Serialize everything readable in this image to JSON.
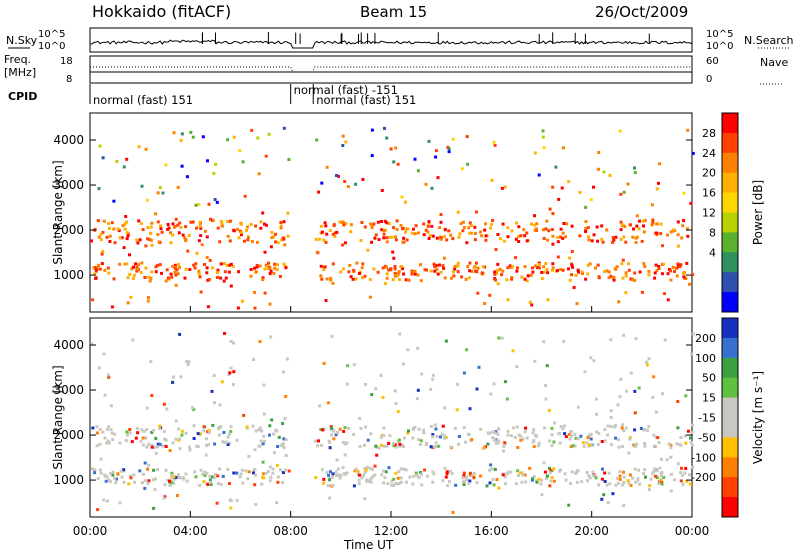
{
  "header": {
    "title": "Hokkaido (fitACF)",
    "beam": "Beam 15",
    "date": "26/Oct/2009"
  },
  "params": {
    "nsky_label": "N.Sky",
    "nsearch_label": "N.Search",
    "freq_label_1": "Freq.",
    "freq_label_2": "[MHz]",
    "nave_label": "Nave",
    "cpid_label": "CPID",
    "nsky_ticks": [
      "10^5",
      "10^0"
    ],
    "freq_ticks": [
      "18",
      "8"
    ],
    "nave_ticks": [
      "60",
      "0"
    ],
    "cpid_segments": [
      {
        "label": "normal (fast) 151",
        "start_h": 0.0,
        "end_h": 8.0
      },
      {
        "label": "normal (fast) -151",
        "start_h": 8.0,
        "end_h": 8.9
      },
      {
        "label": "normal (fast) 151",
        "start_h": 8.9,
        "end_h": 24.0
      }
    ]
  },
  "chart_data": [
    {
      "type": "heatmap",
      "name": "power",
      "ylabel": "Slant Range [km]",
      "colorbar_label": "Power [dB]",
      "colorbar_ticks": [
        "28",
        "24",
        "20",
        "16",
        "12",
        "8",
        "4"
      ],
      "colorbar_colors": [
        "#ff0000",
        "#ff4000",
        "#ff8000",
        "#ffb000",
        "#ffd700",
        "#b8d000",
        "#5bb030",
        "#2f9060",
        "#3050b0",
        "#0000ff"
      ],
      "ylim": [
        180,
        4600
      ],
      "yticks": [
        "1000",
        "2000",
        "3000",
        "4000"
      ],
      "xlim": [
        0,
        24
      ],
      "xticks": [
        "00:00",
        "04:00",
        "08:00",
        "12:00",
        "16:00",
        "20:00",
        "00:00"
      ],
      "xlabel": "Time UT"
    },
    {
      "type": "heatmap",
      "name": "velocity",
      "ylabel": "Slant Range [km]",
      "colorbar_label": "Velocity [m s⁻¹]",
      "colorbar_ticks": [
        "200",
        "100",
        "50",
        "15",
        "-15",
        "-50",
        "-100",
        "-200"
      ],
      "colorbar_colors": [
        "#1830c0",
        "#3870d0",
        "#3aa040",
        "#60c040",
        "#c8c8c0",
        "#c8c8c0",
        "#ffc000",
        "#ff8000",
        "#ff4000",
        "#ff0000"
      ],
      "ylim": [
        180,
        4600
      ],
      "yticks": [
        "1000",
        "2000",
        "3000",
        "4000"
      ],
      "xlim": [
        0,
        24
      ],
      "xticks": [
        "00:00",
        "04:00",
        "08:00",
        "12:00",
        "16:00",
        "20:00",
        "00:00"
      ],
      "xlabel": "Time UT"
    }
  ]
}
